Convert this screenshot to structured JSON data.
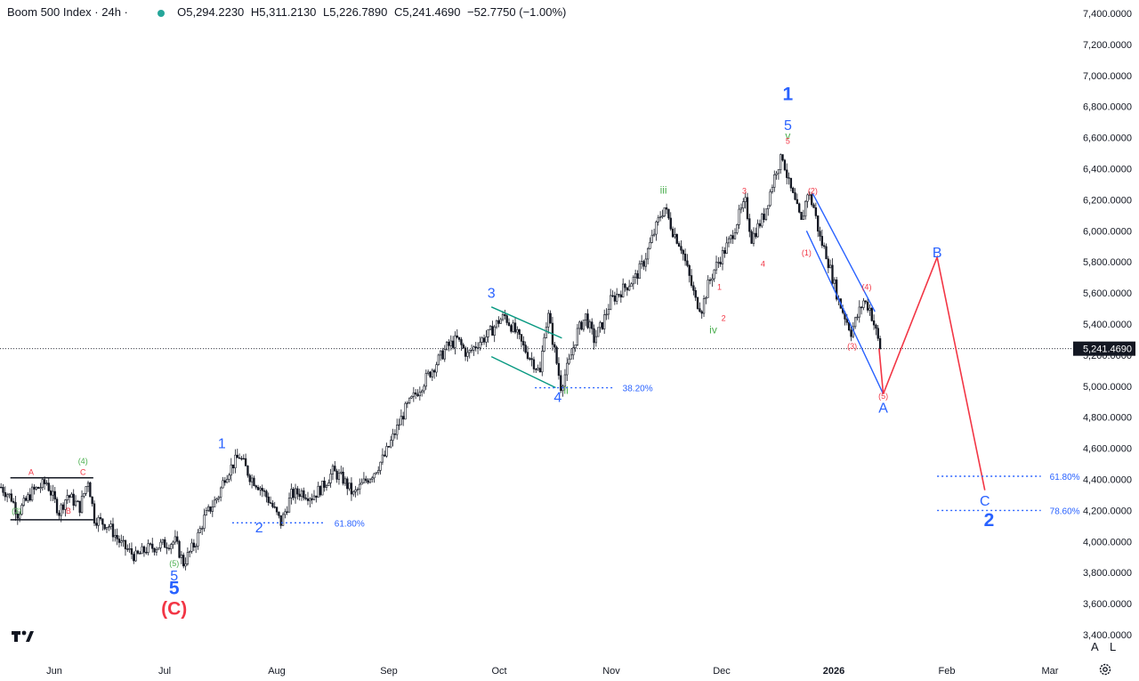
{
  "header": {
    "symbol": "Boom 500 Index · 24h · ",
    "open": "O5,294.2230",
    "high": "H5,311.2130",
    "low": "L5,226.7890",
    "close": "C5,241.4690",
    "change": "−52.7750 (−1.00%)",
    "status_color": "#26a69a"
  },
  "controls": {
    "auto_label": "A",
    "log_label": "L"
  },
  "icons": [
    "tradingview-logo-icon",
    "gear-icon"
  ],
  "colors": {
    "bull": "#ffffff",
    "bear": "#131722",
    "wave_blue": "#2962ff",
    "wave_red": "#f23645",
    "wave_green": "#4caf50",
    "channel_green": "#089981",
    "fib": "#2962ff"
  },
  "chart_data": {
    "type": "candlestick",
    "y_axis_labels": [
      "7,400.0000",
      "7,200.0000",
      "7,000.0000",
      "6,800.0000",
      "6,600.0000",
      "6,400.0000",
      "6,200.0000",
      "6,000.0000",
      "5,800.0000",
      "5,600.0000",
      "5,400.0000",
      "5,200.0000",
      "5,000.0000",
      "4,800.0000",
      "4,600.0000",
      "4,400.0000",
      "4,200.0000",
      "4,000.0000",
      "3,800.0000",
      "3,600.0000",
      "3,400.0000"
    ],
    "y_axis_values": [
      7400,
      7200,
      7000,
      6800,
      6600,
      6400,
      6200,
      6000,
      5800,
      5600,
      5400,
      5200,
      5000,
      4800,
      4600,
      4400,
      4200,
      4000,
      3800,
      3600,
      3400
    ],
    "ylim": [
      3400,
      7400
    ],
    "x_axis_labels": [
      "Jun",
      "Jul",
      "Aug",
      "Sep",
      "Oct",
      "Nov",
      "Dec",
      "2026",
      "Feb",
      "Mar"
    ],
    "bold_x_labels": [
      "2026"
    ],
    "last_price": "5,241.4690",
    "last_price_value": 5241.469,
    "price_path": [
      [
        0,
        4350
      ],
      [
        5,
        4280
      ],
      [
        8,
        4180
      ],
      [
        15,
        4320
      ],
      [
        22,
        4380
      ],
      [
        28,
        4190
      ],
      [
        32,
        4300
      ],
      [
        38,
        4220
      ],
      [
        42,
        4400
      ],
      [
        45,
        4150
      ],
      [
        52,
        4100
      ],
      [
        58,
        3980
      ],
      [
        65,
        3900
      ],
      [
        70,
        3950
      ],
      [
        78,
        3980
      ],
      [
        84,
        4000
      ],
      [
        88,
        3860
      ],
      [
        94,
        4000
      ],
      [
        98,
        4150
      ],
      [
        105,
        4300
      ],
      [
        108,
        4420
      ],
      [
        112,
        4500
      ],
      [
        115,
        4550
      ],
      [
        120,
        4420
      ],
      [
        125,
        4350
      ],
      [
        130,
        4250
      ],
      [
        135,
        4120
      ],
      [
        140,
        4300
      ],
      [
        145,
        4320
      ],
      [
        150,
        4290
      ],
      [
        155,
        4350
      ],
      [
        160,
        4450
      ],
      [
        165,
        4400
      ],
      [
        170,
        4300
      ],
      [
        175,
        4380
      ],
      [
        180,
        4450
      ],
      [
        185,
        4550
      ],
      [
        190,
        4700
      ],
      [
        195,
        4850
      ],
      [
        200,
        4950
      ],
      [
        205,
        5050
      ],
      [
        210,
        5150
      ],
      [
        215,
        5250
      ],
      [
        220,
        5300
      ],
      [
        225,
        5200
      ],
      [
        230,
        5280
      ],
      [
        235,
        5330
      ],
      [
        240,
        5420
      ],
      [
        243,
        5450
      ],
      [
        248,
        5350
      ],
      [
        252,
        5250
      ],
      [
        257,
        5150
      ],
      [
        260,
        5080
      ],
      [
        262,
        5350
      ],
      [
        264,
        5450
      ],
      [
        266,
        5300
      ],
      [
        268,
        5150
      ],
      [
        270,
        5000
      ],
      [
        274,
        5150
      ],
      [
        278,
        5350
      ],
      [
        282,
        5450
      ],
      [
        286,
        5300
      ],
      [
        290,
        5400
      ],
      [
        294,
        5550
      ],
      [
        298,
        5600
      ],
      [
        302,
        5650
      ],
      [
        306,
        5700
      ],
      [
        310,
        5800
      ],
      [
        314,
        5950
      ],
      [
        318,
        6100
      ],
      [
        320,
        6150
      ],
      [
        324,
        6000
      ],
      [
        328,
        5900
      ],
      [
        332,
        5700
      ],
      [
        335,
        5550
      ],
      [
        338,
        5500
      ],
      [
        341,
        5650
      ],
      [
        344,
        5750
      ],
      [
        348,
        5850
      ],
      [
        352,
        5950
      ],
      [
        356,
        6100
      ],
      [
        359,
        6180
      ],
      [
        362,
        5950
      ],
      [
        364,
        6000
      ],
      [
        368,
        6100
      ],
      [
        371,
        6250
      ],
      [
        374,
        6400
      ],
      [
        377,
        6480
      ],
      [
        380,
        6300
      ],
      [
        383,
        6180
      ],
      [
        386,
        6050
      ],
      [
        389,
        6250
      ],
      [
        392,
        6150
      ],
      [
        395,
        5950
      ],
      [
        398,
        5850
      ],
      [
        401,
        5700
      ],
      [
        404,
        5550
      ],
      [
        407,
        5450
      ],
      [
        410,
        5350
      ],
      [
        413,
        5450
      ],
      [
        416,
        5550
      ],
      [
        419,
        5500
      ],
      [
        422,
        5350
      ],
      [
        424,
        5241
      ]
    ],
    "series": [
      {
        "name": "projection",
        "points": [
          [
            424,
            5241
          ],
          [
            426,
            4950
          ],
          [
            452,
            5830
          ],
          [
            475,
            4330
          ]
        ]
      }
    ],
    "wave_labels": [
      {
        "text": "1",
        "color": "blue",
        "size": "large",
        "bold": true,
        "x": 380,
        "y": 6840
      },
      {
        "text": "5",
        "color": "blue",
        "size": "medium",
        "x": 380,
        "y": 6650
      },
      {
        "text": "v",
        "color": "green",
        "size": "small",
        "x": 380,
        "y": 6590
      },
      {
        "text": "5",
        "color": "red",
        "size": "tiny",
        "x": 380,
        "y": 6560
      },
      {
        "text": "iii",
        "color": "green",
        "size": "small",
        "x": 320,
        "y": 6240
      },
      {
        "text": "3",
        "color": "red",
        "size": "tiny",
        "x": 359,
        "y": 6240
      },
      {
        "text": "(2)",
        "color": "red",
        "size": "tiny",
        "x": 392,
        "y": 6240
      },
      {
        "text": "4",
        "color": "red",
        "size": "tiny",
        "x": 368,
        "y": 5770
      },
      {
        "text": "(1)",
        "color": "red",
        "size": "tiny",
        "x": 389,
        "y": 5840
      },
      {
        "text": "B",
        "color": "blue",
        "size": "medium",
        "x": 452,
        "y": 5830
      },
      {
        "text": "(4)",
        "color": "red",
        "size": "tiny",
        "x": 418,
        "y": 5620
      },
      {
        "text": "1",
        "color": "red",
        "size": "tiny",
        "x": 347,
        "y": 5620
      },
      {
        "text": "3",
        "color": "blue",
        "size": "medium",
        "x": 237,
        "y": 5570
      },
      {
        "text": "2",
        "color": "red",
        "size": "tiny",
        "x": 349,
        "y": 5420
      },
      {
        "text": "iv",
        "color": "green",
        "size": "small",
        "x": 344,
        "y": 5340
      },
      {
        "text": "(3)",
        "color": "red",
        "size": "tiny",
        "x": 411,
        "y": 5240
      },
      {
        "text": "ii",
        "color": "green",
        "size": "small",
        "x": 273,
        "y": 4950
      },
      {
        "text": "4",
        "color": "blue",
        "size": "medium",
        "x": 269,
        "y": 4900
      },
      {
        "text": "(5)",
        "color": "red",
        "size": "tiny",
        "x": 426,
        "y": 4920
      },
      {
        "text": "A",
        "color": "blue",
        "size": "medium",
        "x": 426,
        "y": 4830
      },
      {
        "text": "1",
        "color": "blue",
        "size": "medium",
        "x": 107,
        "y": 4600
      },
      {
        "text": "(4)",
        "color": "green",
        "size": "tiny",
        "x": 40,
        "y": 4500
      },
      {
        "text": "A",
        "color": "red",
        "size": "tiny",
        "x": 15,
        "y": 4430
      },
      {
        "text": "C",
        "color": "red",
        "size": "tiny",
        "x": 40,
        "y": 4430
      },
      {
        "text": "C",
        "color": "blue",
        "size": "medium",
        "x": 475,
        "y": 4230
      },
      {
        "text": "(3)",
        "color": "green",
        "size": "tiny",
        "x": 8,
        "y": 4180
      },
      {
        "text": "B",
        "color": "red",
        "size": "tiny",
        "x": 33,
        "y": 4180
      },
      {
        "text": "2",
        "color": "blue",
        "size": "large",
        "bold": true,
        "x": 477,
        "y": 4100
      },
      {
        "text": "2",
        "color": "blue",
        "size": "medium",
        "x": 125,
        "y": 4060
      },
      {
        "text": "(5)",
        "color": "green",
        "size": "tiny",
        "x": 84,
        "y": 3840
      },
      {
        "text": "5",
        "color": "blue",
        "size": "medium",
        "x": 84,
        "y": 3750
      },
      {
        "text": "5",
        "color": "blue",
        "size": "large",
        "bold": true,
        "x": 84,
        "y": 3660
      },
      {
        "text": "(C)",
        "color": "red",
        "size": "large",
        "bold": true,
        "x": 84,
        "y": 3530
      }
    ],
    "fib_levels": [
      {
        "label": "61.80%",
        "value": 4120,
        "x_start": 112,
        "x_end": 157
      },
      {
        "label": "38.20%",
        "value": 4990,
        "x_start": 258,
        "x_end": 296
      },
      {
        "label": "61.80%",
        "value": 4420,
        "x_start": 452,
        "x_end": 502
      },
      {
        "label": "78.60%",
        "value": 4200,
        "x_start": 452,
        "x_end": 502
      }
    ],
    "channels": [
      {
        "color": "blue",
        "points": [
          [
            392,
            6240
          ],
          [
            422,
            5480
          ]
        ]
      },
      {
        "color": "blue",
        "points": [
          [
            389,
            6000
          ],
          [
            426,
            4950
          ]
        ]
      },
      {
        "color": "green",
        "points": [
          [
            237,
            5510
          ],
          [
            271,
            5310
          ]
        ]
      },
      {
        "color": "green",
        "points": [
          [
            237,
            5190
          ],
          [
            268,
            4990
          ]
        ]
      },
      {
        "color": "black",
        "points": [
          [
            5,
            4410
          ],
          [
            45,
            4410
          ]
        ]
      },
      {
        "color": "black",
        "points": [
          [
            5,
            4140
          ],
          [
            45,
            4140
          ]
        ]
      }
    ],
    "grid": false,
    "legend": "none"
  }
}
